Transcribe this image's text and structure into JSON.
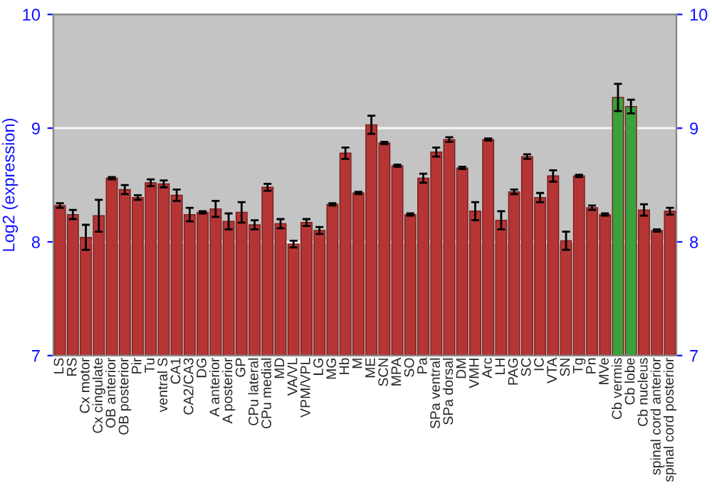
{
  "chart_data": {
    "type": "bar",
    "ylabel": "Log2 (expression)",
    "categories": [
      "LS",
      "RS",
      "Cx motor",
      "Cx cingulate",
      "OB anterior",
      "OB posterior",
      "Pir",
      "Tu",
      "ventral S",
      "CA1",
      "CA2/CA3",
      "DG",
      "A anterior",
      "A posterior",
      "GP",
      "CPu lateral",
      "CPu medial",
      "MD",
      "VA/VL",
      "VPM/VPL",
      "LG",
      "MG",
      "Hb",
      "M",
      "ME",
      "SCN",
      "MPA",
      "SO",
      "Pa",
      "SPa ventral",
      "SPa dorsal",
      "DM",
      "VMH",
      "Arc",
      "LH",
      "PAG",
      "SC",
      "IC",
      "VTA",
      "SN",
      "Tg",
      "Pn",
      "MVe",
      "Cb vermis",
      "Cb lobe",
      "Cb nucleus",
      "spinal cord anterior",
      "spinal cord posterior"
    ],
    "values": [
      8.32,
      8.24,
      8.04,
      8.23,
      8.56,
      8.46,
      8.39,
      8.52,
      8.51,
      8.41,
      8.24,
      8.26,
      8.29,
      8.18,
      8.26,
      8.15,
      8.48,
      8.16,
      7.98,
      8.17,
      8.1,
      8.33,
      8.78,
      8.43,
      9.03,
      8.87,
      8.67,
      8.24,
      8.56,
      8.79,
      8.9,
      8.65,
      8.27,
      8.9,
      8.19,
      8.44,
      8.75,
      8.39,
      8.58,
      8.01,
      8.58,
      8.3,
      8.24,
      9.27,
      9.19,
      8.28,
      8.1,
      8.27
    ],
    "errors": [
      0.02,
      0.04,
      0.11,
      0.14,
      0.01,
      0.04,
      0.02,
      0.03,
      0.03,
      0.05,
      0.06,
      0.01,
      0.07,
      0.07,
      0.09,
      0.04,
      0.03,
      0.04,
      0.03,
      0.03,
      0.03,
      0.01,
      0.05,
      0.01,
      0.08,
      0.01,
      0.01,
      0.01,
      0.04,
      0.04,
      0.02,
      0.01,
      0.08,
      0.01,
      0.08,
      0.02,
      0.02,
      0.04,
      0.05,
      0.08,
      0.01,
      0.02,
      0.01,
      0.12,
      0.06,
      0.05,
      0.01,
      0.03
    ],
    "colors": [
      "#b53535",
      "#b53535",
      "#b53535",
      "#b53535",
      "#b53535",
      "#b53535",
      "#b53535",
      "#b53535",
      "#b53535",
      "#b53535",
      "#b53535",
      "#b53535",
      "#b53535",
      "#b53535",
      "#b53535",
      "#b53535",
      "#b53535",
      "#b53535",
      "#b53535",
      "#b53535",
      "#b53535",
      "#b53535",
      "#b53535",
      "#b53535",
      "#b53535",
      "#b53535",
      "#b53535",
      "#b53535",
      "#b53535",
      "#b53535",
      "#b53535",
      "#b53535",
      "#b53535",
      "#b53535",
      "#b53535",
      "#b53535",
      "#b53535",
      "#b53535",
      "#b53535",
      "#b53535",
      "#b53535",
      "#b53535",
      "#b53535",
      "#3aa23a",
      "#3aa23a",
      "#b53535",
      "#b53535",
      "#b53535"
    ],
    "ylim": [
      7,
      10
    ],
    "yticks": [
      7,
      8,
      9,
      10
    ],
    "y2lim": [
      7,
      10
    ],
    "y2ticks": [
      7,
      8,
      9,
      10
    ],
    "grid": "y",
    "legend": false
  }
}
